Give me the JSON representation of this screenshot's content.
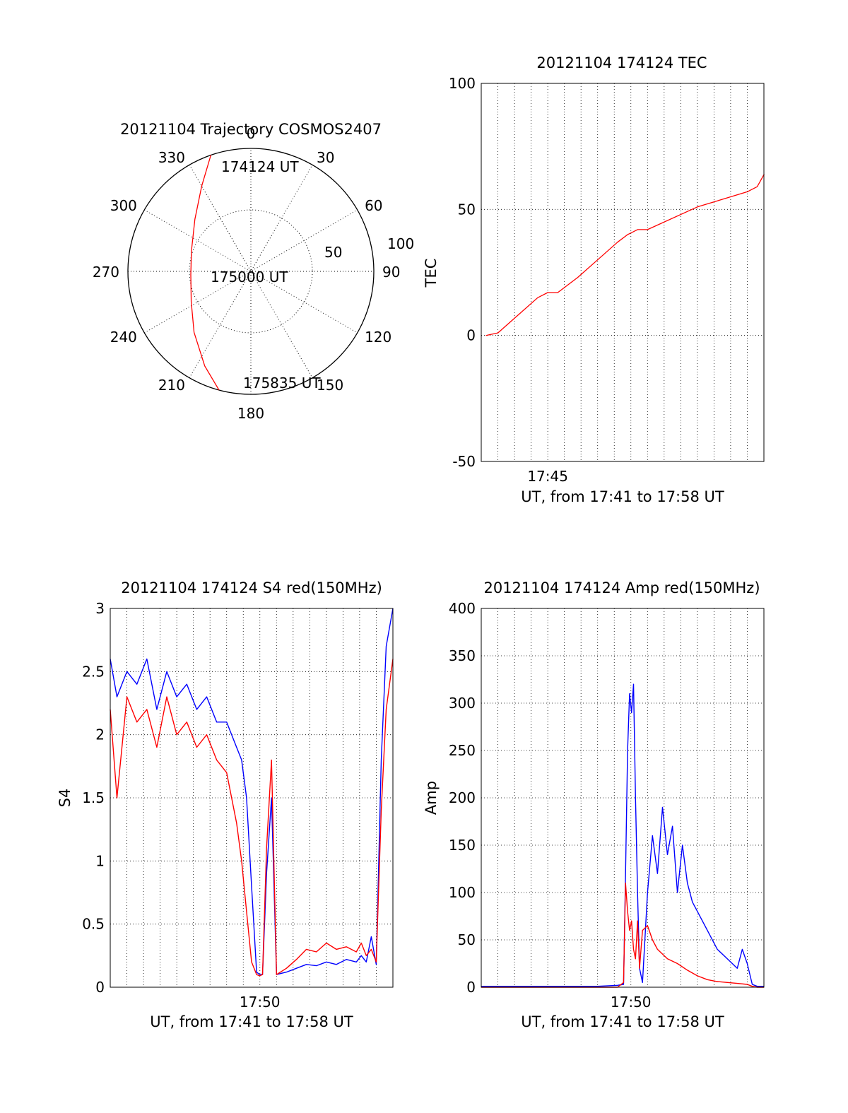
{
  "chart_data": [
    {
      "type": "polar",
      "title": "20121104 Trajectory COSMOS2407",
      "angle_labels": [
        "0",
        "30",
        "60",
        "90",
        "120",
        "150",
        "180",
        "210",
        "240",
        "270",
        "300",
        "330"
      ],
      "angle_values": [
        0,
        30,
        60,
        90,
        120,
        150,
        180,
        210,
        240,
        270,
        300,
        330
      ],
      "radial_labels": [
        "50",
        "100"
      ],
      "radial_values": [
        50,
        100
      ],
      "rlim": [
        0,
        100
      ],
      "annotations": [
        "174124 UT",
        "175000 UT",
        "175835 UT"
      ],
      "series": [
        {
          "color": "#ff0000",
          "points_az_zen": [
            [
              -19,
              90
            ],
            [
              -30,
              72
            ],
            [
              -47,
              56
            ],
            [
              -71,
              46
            ],
            [
              -93,
              44
            ],
            [
              -117,
              49
            ],
            [
              -137,
              61
            ],
            [
              -154,
              77
            ],
            [
              -165,
              90
            ]
          ]
        }
      ]
    },
    {
      "type": "line",
      "title": "20121104 174124 TEC",
      "xlabel": "UT, from 17:41 to 17:58 UT",
      "ylabel": "TEC",
      "xlim": [
        17.6833,
        17.9667
      ],
      "ylim": [
        -50,
        100
      ],
      "x_ticks": [
        17.75
      ],
      "x_tick_labels": [
        "17:45"
      ],
      "y_ticks": [
        -50,
        0,
        50,
        100
      ],
      "y_tick_labels": [
        "-50",
        "0",
        "50",
        "100"
      ],
      "grid": true,
      "series": [
        {
          "color": "#ff0000",
          "x": [
            17.688,
            17.7,
            17.72,
            17.74,
            17.75,
            17.76,
            17.78,
            17.8,
            17.82,
            17.83,
            17.84,
            17.85,
            17.9,
            17.95,
            17.96,
            17.967
          ],
          "y": [
            0,
            1,
            8,
            15,
            17,
            17,
            23,
            30,
            37,
            40,
            42,
            42,
            51,
            57,
            59,
            64
          ]
        }
      ]
    },
    {
      "type": "line",
      "title": "20121104 174124 S4 red(150MHz)",
      "xlabel": "UT, from 17:41 to 17:58 UT",
      "ylabel": "S4",
      "xlim": [
        17.6833,
        17.9667
      ],
      "ylim": [
        0,
        3
      ],
      "x_ticks": [
        17.8333
      ],
      "x_tick_labels": [
        "17:50"
      ],
      "y_ticks": [
        0,
        0.5,
        1,
        1.5,
        2,
        2.5,
        3
      ],
      "y_tick_labels": [
        "0",
        "0.5",
        "1",
        "1.5",
        "2",
        "2.5",
        "3"
      ],
      "grid": true,
      "series": [
        {
          "color": "#0000ff",
          "x": [
            17.6833,
            17.69,
            17.7,
            17.71,
            17.72,
            17.73,
            17.74,
            17.75,
            17.76,
            17.77,
            17.78,
            17.79,
            17.8,
            17.81,
            17.815,
            17.82,
            17.825,
            17.83,
            17.833,
            17.836,
            17.84,
            17.845,
            17.85,
            17.86,
            17.87,
            17.88,
            17.89,
            17.9,
            17.91,
            17.92,
            17.93,
            17.935,
            17.94,
            17.945,
            17.95,
            17.955,
            17.96,
            17.9667
          ],
          "y": [
            2.6,
            2.3,
            2.5,
            2.4,
            2.6,
            2.2,
            2.5,
            2.3,
            2.4,
            2.2,
            2.3,
            2.1,
            2.1,
            1.9,
            1.8,
            1.5,
            0.8,
            0.12,
            0.1,
            0.1,
            0.9,
            1.5,
            0.1,
            0.12,
            0.15,
            0.18,
            0.17,
            0.2,
            0.18,
            0.22,
            0.2,
            0.25,
            0.2,
            0.4,
            0.18,
            1.8,
            2.7,
            3.0
          ]
        },
        {
          "color": "#ff0000",
          "x": [
            17.6833,
            17.69,
            17.7,
            17.71,
            17.72,
            17.73,
            17.74,
            17.75,
            17.76,
            17.77,
            17.78,
            17.79,
            17.8,
            17.81,
            17.815,
            17.82,
            17.825,
            17.83,
            17.833,
            17.836,
            17.84,
            17.845,
            17.85,
            17.86,
            17.87,
            17.88,
            17.89,
            17.9,
            17.91,
            17.92,
            17.93,
            17.935,
            17.94,
            17.945,
            17.95,
            17.955,
            17.96,
            17.9667
          ],
          "y": [
            2.2,
            1.5,
            2.3,
            2.1,
            2.2,
            1.9,
            2.3,
            2.0,
            2.1,
            1.9,
            2.0,
            1.8,
            1.7,
            1.3,
            1.0,
            0.6,
            0.2,
            0.1,
            0.09,
            0.1,
            1.1,
            1.8,
            0.1,
            0.15,
            0.22,
            0.3,
            0.28,
            0.35,
            0.3,
            0.32,
            0.28,
            0.35,
            0.25,
            0.3,
            0.2,
            1.4,
            2.2,
            2.6
          ]
        }
      ]
    },
    {
      "type": "line",
      "title": "20121104 174124 Amp red(150MHz)",
      "xlabel": "UT, from 17:41 to 17:58 UT",
      "ylabel": "Amp",
      "xlim": [
        17.6833,
        17.9667
      ],
      "ylim": [
        0,
        400
      ],
      "x_ticks": [
        17.8333
      ],
      "x_tick_labels": [
        "17:50"
      ],
      "y_ticks": [
        0,
        50,
        100,
        150,
        200,
        250,
        300,
        350,
        400
      ],
      "y_tick_labels": [
        "0",
        "50",
        "100",
        "150",
        "200",
        "250",
        "300",
        "350",
        "400"
      ],
      "grid": true,
      "series": [
        {
          "color": "#0000ff",
          "x": [
            17.6833,
            17.7,
            17.75,
            17.8,
            17.82,
            17.826,
            17.828,
            17.83,
            17.832,
            17.834,
            17.836,
            17.838,
            17.84,
            17.842,
            17.845,
            17.85,
            17.855,
            17.86,
            17.865,
            17.87,
            17.875,
            17.88,
            17.885,
            17.89,
            17.895,
            17.9,
            17.91,
            17.92,
            17.93,
            17.94,
            17.945,
            17.95,
            17.955,
            17.96,
            17.9667
          ],
          "y": [
            1,
            1,
            1,
            1,
            2,
            3,
            120,
            250,
            310,
            290,
            320,
            200,
            100,
            20,
            5,
            100,
            160,
            120,
            190,
            140,
            170,
            100,
            150,
            110,
            90,
            80,
            60,
            40,
            30,
            20,
            40,
            25,
            3,
            1,
            1
          ]
        },
        {
          "color": "#ff0000",
          "x": [
            17.6833,
            17.8,
            17.82,
            17.826,
            17.828,
            17.83,
            17.832,
            17.834,
            17.836,
            17.838,
            17.84,
            17.842,
            17.845,
            17.85,
            17.855,
            17.86,
            17.87,
            17.88,
            17.89,
            17.9,
            17.91,
            17.92,
            17.93,
            17.94,
            17.95,
            17.955,
            17.96,
            17.9667
          ],
          "y": [
            0,
            0,
            0,
            5,
            110,
            80,
            60,
            70,
            40,
            30,
            70,
            20,
            60,
            65,
            50,
            40,
            30,
            25,
            18,
            12,
            8,
            6,
            5,
            4,
            3,
            1,
            0,
            0
          ]
        }
      ]
    }
  ]
}
